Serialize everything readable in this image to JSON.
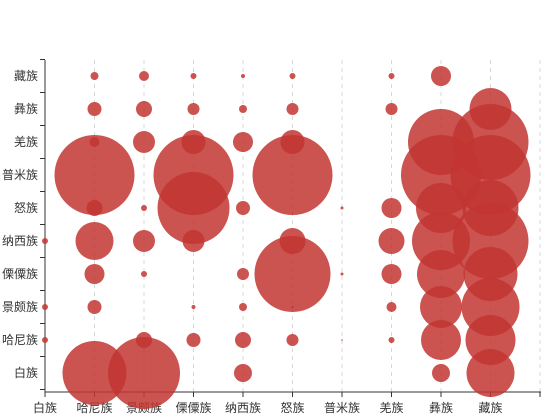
{
  "chart_data": {
    "type": "bubble-matrix",
    "title": "",
    "xlabel": "",
    "ylabel": "",
    "x_categories": [
      "白族",
      "哈尼族",
      "景颇族",
      "傈僳族",
      "纳西族",
      "怒族",
      "普米族",
      "羌族",
      "彝族",
      "藏族"
    ],
    "y_categories": [
      "白族",
      "哈尼族",
      "景颇族",
      "傈僳族",
      "纳西族",
      "怒族",
      "普米族",
      "羌族",
      "彝族",
      "藏族"
    ],
    "grid_vertical": true,
    "grid_horizontal": false,
    "color": "#c23531",
    "points": [
      {
        "x": "哈尼族",
        "y": "白族",
        "size": 32
      },
      {
        "x": "景颇族",
        "y": "白族",
        "size": 36
      },
      {
        "x": "纳西族",
        "y": "白族",
        "size": 9
      },
      {
        "x": "彝族",
        "y": "白族",
        "size": 9
      },
      {
        "x": "藏族",
        "y": "白族",
        "size": 24
      },
      {
        "x": "白族",
        "y": "哈尼族",
        "size": 3
      },
      {
        "x": "景颇族",
        "y": "哈尼族",
        "size": 8
      },
      {
        "x": "傈僳族",
        "y": "哈尼族",
        "size": 7
      },
      {
        "x": "纳西族",
        "y": "哈尼族",
        "size": 8
      },
      {
        "x": "怒族",
        "y": "哈尼族",
        "size": 6
      },
      {
        "x": "普米族",
        "y": "哈尼族",
        "size": 0.6
      },
      {
        "x": "羌族",
        "y": "哈尼族",
        "size": 3
      },
      {
        "x": "彝族",
        "y": "哈尼族",
        "size": 20
      },
      {
        "x": "藏族",
        "y": "哈尼族",
        "size": 25
      },
      {
        "x": "白族",
        "y": "景颇族",
        "size": 3
      },
      {
        "x": "哈尼族",
        "y": "景颇族",
        "size": 7
      },
      {
        "x": "傈僳族",
        "y": "景颇族",
        "size": 2
      },
      {
        "x": "纳西族",
        "y": "景颇族",
        "size": 4
      },
      {
        "x": "怒族",
        "y": "景颇族",
        "size": 1.2
      },
      {
        "x": "羌族",
        "y": "景颇族",
        "size": 5
      },
      {
        "x": "彝族",
        "y": "景颇族",
        "size": 21
      },
      {
        "x": "藏族",
        "y": "景颇族",
        "size": 29
      },
      {
        "x": "哈尼族",
        "y": "傈僳族",
        "size": 10
      },
      {
        "x": "景颇族",
        "y": "傈僳族",
        "size": 3
      },
      {
        "x": "纳西族",
        "y": "傈僳族",
        "size": 6
      },
      {
        "x": "怒族",
        "y": "傈僳族",
        "size": 38
      },
      {
        "x": "普米族",
        "y": "傈僳族",
        "size": 1.5
      },
      {
        "x": "羌族",
        "y": "傈僳族",
        "size": 10
      },
      {
        "x": "彝族",
        "y": "傈僳族",
        "size": 24
      },
      {
        "x": "藏族",
        "y": "傈僳族",
        "size": 27
      },
      {
        "x": "白族",
        "y": "纳西族",
        "size": 3
      },
      {
        "x": "哈尼族",
        "y": "纳西族",
        "size": 19
      },
      {
        "x": "景颇族",
        "y": "纳西族",
        "size": 11
      },
      {
        "x": "傈僳族",
        "y": "纳西族",
        "size": 11
      },
      {
        "x": "怒族",
        "y": "纳西族",
        "size": 13
      },
      {
        "x": "羌族",
        "y": "纳西族",
        "size": 13
      },
      {
        "x": "彝族",
        "y": "纳西族",
        "size": 29
      },
      {
        "x": "藏族",
        "y": "纳西族",
        "size": 38
      },
      {
        "x": "哈尼族",
        "y": "怒族",
        "size": 8
      },
      {
        "x": "景颇族",
        "y": "怒族",
        "size": 3
      },
      {
        "x": "傈僳族",
        "y": "怒族",
        "size": 36
      },
      {
        "x": "纳西族",
        "y": "怒族",
        "size": 7
      },
      {
        "x": "普米族",
        "y": "怒族",
        "size": 1.5
      },
      {
        "x": "羌族",
        "y": "怒族",
        "size": 10
      },
      {
        "x": "彝族",
        "y": "怒族",
        "size": 25
      },
      {
        "x": "藏族",
        "y": "怒族",
        "size": 28
      },
      {
        "x": "哈尼族",
        "y": "普米族",
        "size": 40
      },
      {
        "x": "傈僳族",
        "y": "普米族",
        "size": 40
      },
      {
        "x": "怒族",
        "y": "普米族",
        "size": 40
      },
      {
        "x": "彝族",
        "y": "普米族",
        "size": 40
      },
      {
        "x": "藏族",
        "y": "普米族",
        "size": 40
      },
      {
        "x": "哈尼族",
        "y": "羌族",
        "size": 5
      },
      {
        "x": "景颇族",
        "y": "羌族",
        "size": 11
      },
      {
        "x": "傈僳族",
        "y": "羌族",
        "size": 12
      },
      {
        "x": "纳西族",
        "y": "羌族",
        "size": 10
      },
      {
        "x": "怒族",
        "y": "羌族",
        "size": 12
      },
      {
        "x": "彝族",
        "y": "羌族",
        "size": 33
      },
      {
        "x": "藏族",
        "y": "羌族",
        "size": 38
      },
      {
        "x": "哈尼族",
        "y": "彝族",
        "size": 7
      },
      {
        "x": "景颇族",
        "y": "彝族",
        "size": 8
      },
      {
        "x": "傈僳族",
        "y": "彝族",
        "size": 6
      },
      {
        "x": "纳西族",
        "y": "彝族",
        "size": 4
      },
      {
        "x": "怒族",
        "y": "彝族",
        "size": 6
      },
      {
        "x": "羌族",
        "y": "彝族",
        "size": 6
      },
      {
        "x": "藏族",
        "y": "彝族",
        "size": 21
      },
      {
        "x": "哈尼族",
        "y": "藏族",
        "size": 4
      },
      {
        "x": "景颇族",
        "y": "藏族",
        "size": 5
      },
      {
        "x": "傈僳族",
        "y": "藏族",
        "size": 3
      },
      {
        "x": "纳西族",
        "y": "藏族",
        "size": 2
      },
      {
        "x": "怒族",
        "y": "藏族",
        "size": 3
      },
      {
        "x": "羌族",
        "y": "藏族",
        "size": 3
      },
      {
        "x": "彝族",
        "y": "藏族",
        "size": 10
      }
    ]
  }
}
